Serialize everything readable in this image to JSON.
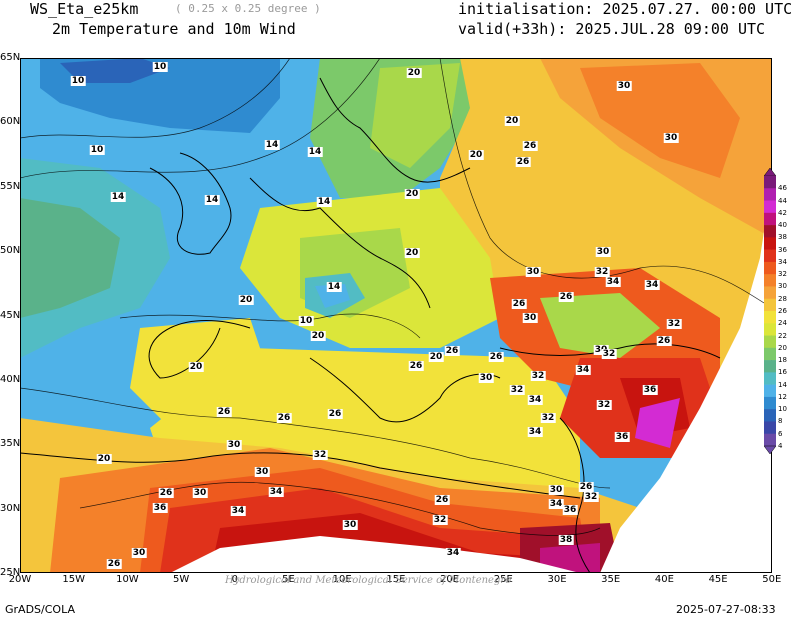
{
  "header": {
    "model": "WS_Eta_e25km",
    "resolution": "( 0.25 x 0.25 degree )",
    "product": "2m Temperature and 10m Wind",
    "initialisation": "initialisation: 2025.07.27. 00:00 UTC",
    "valid": "valid(+33h): 2025.JUL.28 09:00 UTC"
  },
  "footer": {
    "software": "GrADS/COLA",
    "timestamp": "2025-07-27-08:33",
    "watermark": "Hydrological and Meteorological Service of Montenegro"
  },
  "axes": {
    "lat_labels": [
      "65N",
      "60N",
      "55N",
      "50N",
      "45N",
      "40N",
      "35N",
      "30N",
      "25N"
    ],
    "lon_labels": [
      "20W",
      "15W",
      "10W",
      "5W",
      "0",
      "5E",
      "10E",
      "15E",
      "20E",
      "25E",
      "30E",
      "35E",
      "40E",
      "45E",
      "50E"
    ]
  },
  "colorbar": {
    "levels": [
      "46",
      "44",
      "42",
      "40",
      "38",
      "36",
      "34",
      "32",
      "30",
      "28",
      "26",
      "24",
      "22",
      "20",
      "18",
      "16",
      "14",
      "12",
      "10",
      "8",
      "6",
      "4"
    ],
    "colors": [
      "#7a1a7a",
      "#b01fb0",
      "#d32bd3",
      "#c0127d",
      "#a0102a",
      "#c8140f",
      "#e0321b",
      "#ee5a1e",
      "#f4812a",
      "#f5a33a",
      "#f4c53c",
      "#f2e23a",
      "#dbe63a",
      "#a9d84a",
      "#7cc96a",
      "#5ab28a",
      "#52bcc4",
      "#4fb2e8",
      "#2f8bd0",
      "#2a64b8",
      "#3a47a8",
      "#6a4ba8"
    ]
  },
  "map": {
    "contour_labels": [
      "10",
      "10",
      "10",
      "14",
      "14",
      "14",
      "14",
      "14",
      "20",
      "20",
      "20",
      "20",
      "26",
      "26",
      "30",
      "30",
      "30",
      "30",
      "32",
      "34",
      "34",
      "32",
      "26",
      "26",
      "26",
      "20",
      "20",
      "20",
      "20",
      "20",
      "26",
      "26",
      "26",
      "30",
      "30",
      "32",
      "30",
      "32",
      "34",
      "36",
      "32",
      "32",
      "34",
      "36",
      "34",
      "26",
      "26",
      "26",
      "30",
      "30",
      "32",
      "34",
      "36",
      "30",
      "34",
      "36",
      "38",
      "32",
      "32",
      "30",
      "34",
      "30",
      "26",
      "26",
      "20",
      "26",
      "32",
      "26",
      "10",
      "14",
      "34",
      "30"
    ]
  }
}
